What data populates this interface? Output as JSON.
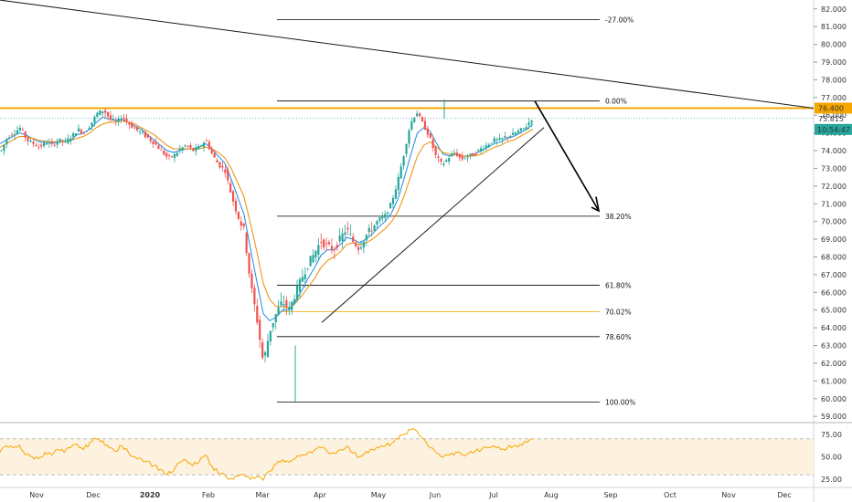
{
  "colors": {
    "up": "#26a69a",
    "down": "#ef5350",
    "ema_fast": "#1e88e5",
    "ema_slow": "#ef8c00",
    "resistance": "#f7a600",
    "fib_line": "#000000",
    "fib_highlight": "#f7a600",
    "rsi_line": "#f7a600",
    "rsi_band": "#fdf1df",
    "current_price_badge": "#26a69a"
  },
  "chart_data": [
    {
      "type": "candlestick",
      "title": "",
      "xlabel": "",
      "ylabel": "",
      "x_ticks": [
        "Nov",
        "Dec",
        "2020",
        "Feb",
        "Mar",
        "Apr",
        "May",
        "Jun",
        "Jul",
        "Aug",
        "Sep",
        "Oct",
        "Nov",
        "Dec"
      ],
      "y_ticks": [
        "82.000",
        "81.000",
        "80.000",
        "79.000",
        "78.000",
        "77.000",
        "76.000",
        "75.000",
        "74.000",
        "73.000",
        "72.000",
        "71.000",
        "70.000",
        "69.000",
        "68.000",
        "67.000",
        "66.000",
        "65.000",
        "64.000",
        "63.000",
        "62.000",
        "61.000",
        "60.000",
        "59.000"
      ],
      "ylim": [
        58.7,
        82.4
      ],
      "price_labels": {
        "resistance": "76.400",
        "last_price": "75.815",
        "countdown": "10:54:47"
      },
      "resistance_level": 76.4,
      "last_price": 75.815,
      "fib_levels": [
        {
          "label": "-27.00%",
          "price": 81.4
        },
        {
          "label": "0.00%",
          "price": 76.8
        },
        {
          "label": "38.20%",
          "price": 70.3
        },
        {
          "label": "61.80%",
          "price": 66.4
        },
        {
          "label": "70.02%",
          "price": 64.9,
          "highlight": true
        },
        {
          "label": "78.60%",
          "price": 63.5
        },
        {
          "label": "100.00%",
          "price": 59.8
        }
      ],
      "price_path": [
        74.0,
        74.8,
        75.0,
        75.3,
        74.6,
        74.4,
        74.2,
        74.5,
        74.3,
        74.6,
        74.5,
        74.8,
        75.2,
        75.0,
        75.5,
        76.1,
        76.3,
        75.8,
        75.6,
        75.9,
        75.5,
        75.2,
        75.0,
        74.7,
        74.4,
        74.0,
        73.6,
        73.7,
        74.1,
        74.3,
        74.0,
        74.2,
        74.6,
        73.8,
        73.2,
        72.9,
        71.5,
        70.3,
        69.5,
        66.5,
        64.5,
        62.0,
        63.8,
        64.8,
        65.5,
        65.0,
        65.9,
        66.8,
        67.6,
        68.2,
        68.9,
        68.6,
        68.4,
        69.0,
        69.6,
        68.9,
        68.5,
        69.2,
        69.6,
        70.1,
        70.3,
        71.0,
        72.2,
        73.8,
        75.5,
        76.2,
        75.5,
        74.8,
        73.7,
        73.2,
        73.6,
        73.9,
        73.5,
        73.7,
        73.8,
        74.1,
        74.3,
        74.6,
        74.6,
        74.8,
        74.9,
        75.1,
        75.3,
        75.8
      ],
      "extremes": {
        "low": 59.8,
        "high": 76.9
      },
      "ema": [
        {
          "name": "",
          "values": [
            74.4,
            74.6,
            74.8,
            75.0,
            74.9,
            74.7,
            74.5,
            74.5,
            74.4,
            74.5,
            74.5,
            74.6,
            74.9,
            75.0,
            75.2,
            75.6,
            75.9,
            75.8,
            75.7,
            75.8,
            75.6,
            75.4,
            75.2,
            74.9,
            74.6,
            74.3,
            74.0,
            73.9,
            74.0,
            74.1,
            74.1,
            74.2,
            74.4,
            74.1,
            73.7,
            73.3,
            72.4,
            71.4,
            70.4,
            68.5,
            66.6,
            64.8,
            64.4,
            64.6,
            65.0,
            65.0,
            65.5,
            66.1,
            66.8,
            67.4,
            68.1,
            68.4,
            68.4,
            68.7,
            69.1,
            69.0,
            68.8,
            69.0,
            69.3,
            69.7,
            70.0,
            70.5,
            71.3,
            72.5,
            73.8,
            75.0,
            75.3,
            75.1,
            74.4,
            73.8,
            73.7,
            73.8,
            73.7,
            73.7,
            73.8,
            74.0,
            74.2,
            74.4,
            74.5,
            74.7,
            74.8,
            75.0,
            75.2,
            75.5
          ]
        },
        {
          "name": "",
          "values": [
            74.2,
            74.4,
            74.6,
            74.8,
            74.8,
            74.7,
            74.6,
            74.5,
            74.5,
            74.5,
            74.5,
            74.6,
            74.7,
            74.8,
            75.0,
            75.3,
            75.5,
            75.6,
            75.6,
            75.7,
            75.6,
            75.5,
            75.3,
            75.1,
            74.9,
            74.6,
            74.3,
            74.1,
            74.1,
            74.1,
            74.1,
            74.1,
            74.2,
            74.1,
            73.9,
            73.6,
            73.0,
            72.2,
            71.4,
            69.9,
            68.3,
            66.5,
            65.6,
            65.2,
            65.2,
            65.1,
            65.4,
            65.8,
            66.3,
            66.8,
            67.4,
            67.8,
            68.0,
            68.3,
            68.7,
            68.8,
            68.7,
            68.8,
            69.0,
            69.3,
            69.6,
            70.0,
            70.6,
            71.5,
            72.6,
            73.7,
            74.3,
            74.5,
            74.2,
            73.9,
            73.8,
            73.8,
            73.7,
            73.7,
            73.7,
            73.8,
            74.0,
            74.2,
            74.3,
            74.5,
            74.6,
            74.8,
            75.0,
            75.2
          ]
        }
      ]
    },
    {
      "type": "line",
      "title": "",
      "y_ticks": [
        "75.00",
        "50.00",
        "25.00"
      ],
      "ylim": [
        18,
        85
      ],
      "band": [
        30,
        70
      ],
      "series": [
        {
          "name": "",
          "values": [
            55,
            62,
            60,
            63,
            52,
            50,
            48,
            55,
            52,
            58,
            55,
            60,
            64,
            58,
            66,
            70,
            68,
            60,
            56,
            62,
            55,
            50,
            48,
            45,
            40,
            36,
            30,
            34,
            44,
            46,
            40,
            44,
            52,
            40,
            32,
            30,
            26,
            28,
            30,
            25,
            28,
            24,
            34,
            42,
            47,
            44,
            48,
            52,
            55,
            58,
            60,
            56,
            54,
            58,
            62,
            54,
            50,
            56,
            58,
            60,
            62,
            65,
            70,
            76,
            80,
            78,
            70,
            60,
            54,
            50,
            52,
            55,
            52,
            54,
            56,
            58,
            60,
            62,
            58,
            60,
            62,
            64,
            66,
            70
          ]
        }
      ]
    }
  ]
}
